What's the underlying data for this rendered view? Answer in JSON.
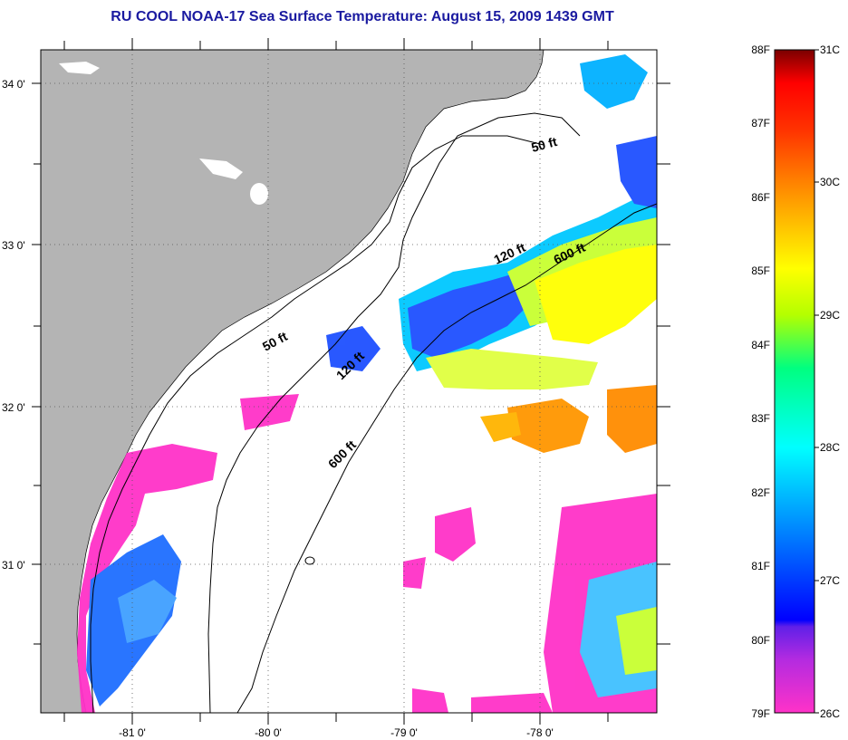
{
  "title": "RU COOL  NOAA-17  Sea Surface Temperature:  August 15, 2009 1439 GMT",
  "map": {
    "lat_ticks": [
      "34 0'",
      "33 0'",
      "32 0'",
      "31 0'"
    ],
    "lon_ticks": [
      "-81 0'",
      "-80 0'",
      "-79 0'",
      "-78 0'"
    ],
    "contour_labels": [
      {
        "text": "50 ft",
        "which": "isobath-50-north"
      },
      {
        "text": "120 ft",
        "which": "isobath-120-north"
      },
      {
        "text": "600 ft",
        "which": "isobath-600-north"
      },
      {
        "text": "50 ft",
        "which": "isobath-50-south"
      },
      {
        "text": "120 ft",
        "which": "isobath-120-south"
      },
      {
        "text": "600 ft",
        "which": "isobath-600-south"
      }
    ],
    "colors": {
      "land": "#b4b4b4",
      "ocean_no_data": "#ffffff"
    }
  },
  "colorbar": {
    "fahrenheit_labels": [
      "88F",
      "87F",
      "86F",
      "85F",
      "84F",
      "83F",
      "82F",
      "81F",
      "80F",
      "79F"
    ],
    "celsius_labels": [
      "31C",
      "30C",
      "29C",
      "28C",
      "27C",
      "26C"
    ],
    "range_c": [
      26,
      31
    ],
    "palette": [
      "#ff32c8",
      "#8a2be2",
      "#0000ff",
      "#0096ff",
      "#00ffff",
      "#00ff80",
      "#c8ff00",
      "#ffff00",
      "#ff9600",
      "#ff3200",
      "#ff0000",
      "#8b0000"
    ]
  }
}
